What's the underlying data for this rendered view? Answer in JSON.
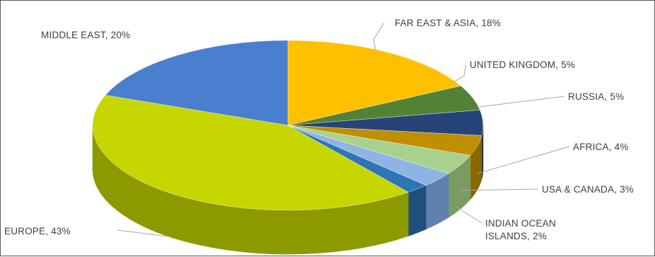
{
  "chart_data": {
    "type": "pie",
    "style": "3d",
    "title": "",
    "slices": [
      {
        "label": "FAR EAST & ASIA, 18%",
        "value": 18,
        "top_color": "#ffc000",
        "side_color": "#c79600"
      },
      {
        "label": "UNITED KINGDOM, 5%",
        "value": 5,
        "top_color": "#548235",
        "side_color": "#3b5c25"
      },
      {
        "label": "RUSSIA, 5%",
        "value": 5,
        "top_color": "#264478",
        "side_color": "#1a2f54"
      },
      {
        "label": "",
        "value": 4,
        "top_color": "#bf8f00",
        "side_color": "#8a6700"
      },
      {
        "label": "AFRICA, 4%",
        "value": 4,
        "top_color": "#a9d18e",
        "side_color": "#7a9c63"
      },
      {
        "label": "USA & CANADA, 3%",
        "value": 3,
        "top_color": "#8fb4e3",
        "side_color": "#5f82ad"
      },
      {
        "label": "INDIAN OCEAN\nISLANDS, 2%",
        "value": 2,
        "top_color": "#2e75b6",
        "side_color": "#1f4f7c"
      },
      {
        "label": "EUROPE, 43%",
        "value": 43,
        "top_color": "#c5d600",
        "side_color": "#8c9a00"
      },
      {
        "label": "MIDDLE EAST, 20%",
        "value": 20,
        "top_color": "#4a7fd0",
        "side_color": "#305a96"
      }
    ]
  }
}
